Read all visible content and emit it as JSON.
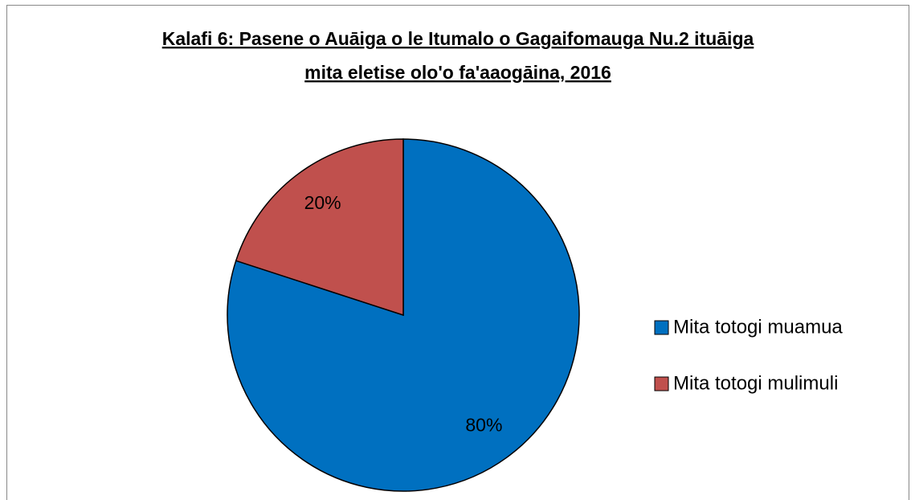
{
  "chart_data": {
    "type": "pie",
    "title": [
      "Kalafi 6: Pasene o Auāiga o le Itumalo o Gagaifomauga Nu.2 ituāiga",
      "mita eletise olo'o fa'aaogāina, 2016"
    ],
    "categories": [
      "Mita totogi muamua",
      "Mita totogi mulimuli"
    ],
    "values": [
      80,
      20
    ],
    "value_labels": [
      "80%",
      "20%"
    ],
    "colors": [
      "#0070c0",
      "#c0504d"
    ],
    "legend": "right"
  }
}
